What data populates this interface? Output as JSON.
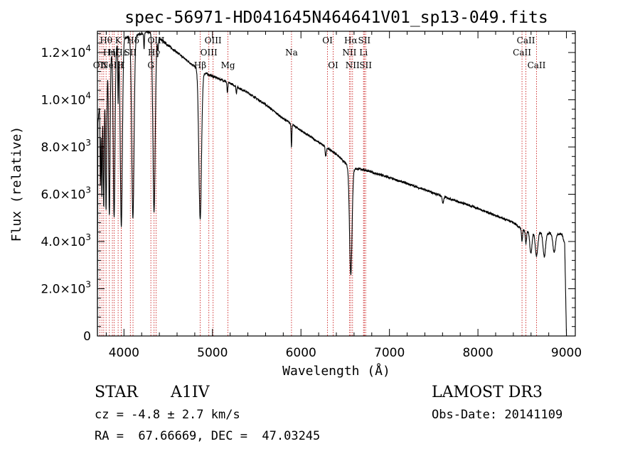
{
  "chart_data": {
    "type": "line",
    "title": "spec-56971-HD041645N464641V01_sp13-049.fits",
    "xlabel": "Wavelength (Å)",
    "ylabel": "Flux (relative)",
    "xlim": [
      3700,
      9100
    ],
    "ylim": [
      0,
      12900
    ],
    "x_ticks": [
      4000,
      5000,
      6000,
      7000,
      8000,
      9000
    ],
    "x_tick_labels": [
      "4000",
      "5000",
      "6000",
      "7000",
      "8000",
      "9000"
    ],
    "y_ticks": [
      0,
      2000,
      4000,
      6000,
      8000,
      10000,
      12000
    ],
    "y_tick_labels": [
      {
        "mant": "0",
        "exp": ""
      },
      {
        "mant": "2.0×10",
        "exp": "3"
      },
      {
        "mant": "4.0×10",
        "exp": "3"
      },
      {
        "mant": "6.0×10",
        "exp": "3"
      },
      {
        "mant": "8.0×10",
        "exp": "3"
      },
      {
        "mant": "1.0×10",
        "exp": "4"
      },
      {
        "mant": "1.2×10",
        "exp": "4"
      }
    ],
    "continuum": [
      [
        3700,
        0
      ],
      [
        3705,
        9000
      ],
      [
        3720,
        9600
      ],
      [
        3760,
        10400
      ],
      [
        3800,
        11200
      ],
      [
        3850,
        11900
      ],
      [
        3900,
        12300
      ],
      [
        3950,
        12500
      ],
      [
        4000,
        12600
      ],
      [
        4050,
        12650
      ],
      [
        4150,
        12750
      ],
      [
        4250,
        12850
      ],
      [
        4300,
        12850
      ],
      [
        4400,
        12600
      ],
      [
        4500,
        12300
      ],
      [
        4600,
        12000
      ],
      [
        4700,
        11700
      ],
      [
        4800,
        11400
      ],
      [
        4900,
        11150
      ],
      [
        5000,
        11000
      ],
      [
        5200,
        10700
      ],
      [
        5400,
        10300
      ],
      [
        5600,
        9800
      ],
      [
        5800,
        9200
      ],
      [
        6000,
        8700
      ],
      [
        6200,
        8200
      ],
      [
        6400,
        7700
      ],
      [
        6560,
        7100
      ],
      [
        6700,
        7050
      ],
      [
        7000,
        6700
      ],
      [
        7200,
        6450
      ],
      [
        7500,
        6050
      ],
      [
        8000,
        5400
      ],
      [
        8400,
        4800
      ],
      [
        8500,
        4500
      ],
      [
        8600,
        4400
      ],
      [
        8800,
        4350
      ],
      [
        8950,
        4300
      ],
      [
        8980,
        3900
      ],
      [
        9000,
        0
      ]
    ],
    "absorption_features": [
      {
        "center": 3734,
        "depth": 3500,
        "width": 4
      },
      {
        "center": 3750,
        "depth": 4300,
        "width": 5
      },
      {
        "center": 3771,
        "depth": 5200,
        "width": 6
      },
      {
        "center": 3798,
        "depth": 5800,
        "width": 7
      },
      {
        "center": 3835,
        "depth": 6600,
        "width": 8
      },
      {
        "center": 3889,
        "depth": 7200,
        "width": 10
      },
      {
        "center": 3934,
        "depth": 2500,
        "width": 4
      },
      {
        "center": 3970,
        "depth": 7900,
        "width": 12
      },
      {
        "center": 4101,
        "depth": 7700,
        "width": 13
      },
      {
        "center": 4227,
        "depth": 700,
        "width": 4
      },
      {
        "center": 4340,
        "depth": 7500,
        "width": 13
      },
      {
        "center": 4384,
        "depth": 600,
        "width": 5
      },
      {
        "center": 4861,
        "depth": 6300,
        "width": 15
      },
      {
        "center": 5169,
        "depth": 450,
        "width": 5
      },
      {
        "center": 5270,
        "depth": 300,
        "width": 4
      },
      {
        "center": 5893,
        "depth": 950,
        "width": 4
      },
      {
        "center": 6280,
        "depth": 400,
        "width": 6
      },
      {
        "center": 6563,
        "depth": 4500,
        "width": 14
      },
      {
        "center": 7605,
        "depth": 300,
        "width": 8
      },
      {
        "center": 8498,
        "depth": 500,
        "width": 6
      },
      {
        "center": 8542,
        "depth": 550,
        "width": 7
      },
      {
        "center": 8598,
        "depth": 900,
        "width": 12
      },
      {
        "center": 8662,
        "depth": 1000,
        "width": 14
      },
      {
        "center": 8750,
        "depth": 1000,
        "width": 14
      },
      {
        "center": 8862,
        "depth": 800,
        "width": 14
      }
    ],
    "spectral_lines": [
      {
        "wl": 3727,
        "label": "OII",
        "row": 3
      },
      {
        "wl": 3750,
        "label": "",
        "row": 0
      },
      {
        "wl": 3771,
        "label": "",
        "row": 0
      },
      {
        "wl": 3798,
        "label": "Hθ",
        "row": 1
      },
      {
        "wl": 3835,
        "label": "Hη",
        "row": 2
      },
      {
        "wl": 3869,
        "label": "NeIII",
        "row": 3
      },
      {
        "wl": 3889,
        "label": "Hζ",
        "row": 2
      },
      {
        "wl": 3934,
        "label": "K",
        "row": 1
      },
      {
        "wl": 3969,
        "label": "H",
        "row": 3
      },
      {
        "wl": 3970,
        "label": "Hε",
        "row": 2
      },
      {
        "wl": 4072,
        "label": "SII",
        "row": 2
      },
      {
        "wl": 4102,
        "label": "Hδ",
        "row": 1
      },
      {
        "wl": 4304,
        "label": "G",
        "row": 3
      },
      {
        "wl": 4340,
        "label": "Hγ",
        "row": 2
      },
      {
        "wl": 4363,
        "label": "OIII",
        "row": 1
      },
      {
        "wl": 4861,
        "label": "Hβ",
        "row": 3
      },
      {
        "wl": 4959,
        "label": "OIII",
        "row": 2
      },
      {
        "wl": 5007,
        "label": "OIII",
        "row": 1
      },
      {
        "wl": 5175,
        "label": "Mg",
        "row": 3
      },
      {
        "wl": 5893,
        "label": "Na",
        "row": 2
      },
      {
        "wl": 6300,
        "label": "OI",
        "row": 1
      },
      {
        "wl": 6364,
        "label": "OI",
        "row": 3
      },
      {
        "wl": 6548,
        "label": "NII",
        "row": 2
      },
      {
        "wl": 6563,
        "label": "Hα",
        "row": 1
      },
      {
        "wl": 6583,
        "label": "NII",
        "row": 3
      },
      {
        "wl": 6707,
        "label": "Li",
        "row": 2
      },
      {
        "wl": 6716,
        "label": "SII",
        "row": 1
      },
      {
        "wl": 6731,
        "label": "SII",
        "row": 3
      },
      {
        "wl": 8498,
        "label": "CaII",
        "row": 2
      },
      {
        "wl": 8542,
        "label": "CaII",
        "row": 1
      },
      {
        "wl": 8662,
        "label": "CaII",
        "row": 3
      }
    ]
  },
  "info": {
    "class_label": "STAR",
    "subclass": "A1IV",
    "cz": "cz = -4.8 ± 2.7 km/s",
    "coords": "RA =  67.66669, DEC =  47.03245",
    "survey": "LAMOST DR3",
    "obs_date": "Obs-Date: 20141109"
  },
  "colors": {
    "spectrum": "#000000",
    "line_marker": "#cc2222",
    "axes": "#000000"
  }
}
